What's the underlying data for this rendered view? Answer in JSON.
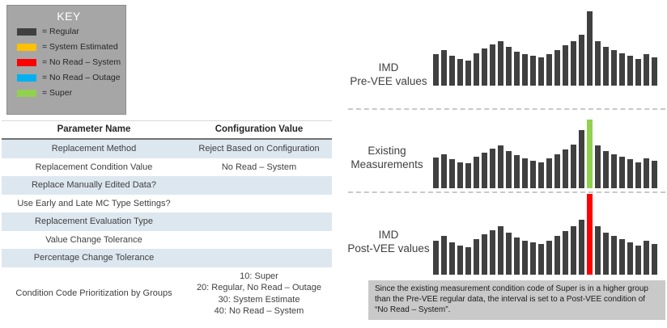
{
  "colors": {
    "regular": "#404040",
    "system_estimated": "#FFC000",
    "no_read_system": "#FF0000",
    "no_read_outage": "#00B0F0",
    "super": "#92D050",
    "table_stripe": "#dde7f0",
    "key_background": "#a6a6a6",
    "callout_background": "#c9c9c9"
  },
  "key": {
    "title": "KEY",
    "items": [
      {
        "label": "= Regular",
        "color_key": "regular",
        "icon": "regular-swatch-icon"
      },
      {
        "label": "= System Estimated",
        "color_key": "system_estimated",
        "icon": "system-estimated-swatch-icon"
      },
      {
        "label": "= No Read – System",
        "color_key": "no_read_system",
        "icon": "no-read-system-swatch-icon"
      },
      {
        "label": "= No Read – Outage",
        "color_key": "no_read_outage",
        "icon": "no-read-outage-swatch-icon"
      },
      {
        "label": "= Super",
        "color_key": "super",
        "icon": "super-swatch-icon"
      }
    ]
  },
  "table": {
    "headers": [
      "Parameter Name",
      "Configuration Value"
    ],
    "rows": [
      {
        "param": "Replacement Method",
        "value": "Reject Based on Configuration"
      },
      {
        "param": "Replacement Condition Value",
        "value": "No Read – System"
      },
      {
        "param": "Replace Manually Edited Data?",
        "value": ""
      },
      {
        "param": "Use Early and Late MC Type Settings?",
        "value": ""
      },
      {
        "param": "Replacement Evaluation Type",
        "value": ""
      },
      {
        "param": "Value Change Tolerance",
        "value": ""
      },
      {
        "param": "Percentage Change Tolerance",
        "value": ""
      },
      {
        "param": "Condition Code Prioritization by Groups",
        "value": "10: Super\n20: Regular, No Read – Outage\n30: System Estimate\n40: No Read – System"
      }
    ]
  },
  "chart_data": [
    {
      "type": "bar",
      "title": "IMD Pre-VEE values",
      "label_lines": [
        "IMD",
        "Pre-VEE values"
      ],
      "values": [
        42,
        48,
        40,
        36,
        34,
        44,
        50,
        55,
        60,
        52,
        46,
        42,
        40,
        38,
        42,
        48,
        54,
        60,
        68,
        100,
        60,
        52,
        48,
        44,
        40,
        36,
        42,
        38
      ],
      "highlight": {
        "index": 19,
        "condition": "regular"
      },
      "ylim": [
        0,
        100
      ],
      "xlabel": "",
      "ylabel": "",
      "notes": "Unlabeled illustrative interval bars; all bars Regular (dark gray); tallest spike at index 19."
    },
    {
      "type": "bar",
      "title": "Existing Measurements",
      "label_lines": [
        "Existing",
        "Measurements"
      ],
      "values": [
        45,
        50,
        42,
        38,
        36,
        46,
        52,
        58,
        62,
        54,
        48,
        44,
        40,
        38,
        44,
        50,
        56,
        64,
        85,
        100,
        62,
        54,
        50,
        46,
        42,
        38,
        44,
        40
      ],
      "highlight": {
        "index": 19,
        "condition": "super"
      },
      "ylim": [
        0,
        100
      ],
      "xlabel": "",
      "ylabel": "",
      "notes": "Unlabeled illustrative interval bars; spike at index 19 has Super condition (green)."
    },
    {
      "type": "bar",
      "title": "IMD Post-VEE values",
      "label_lines": [
        "IMD",
        "Post-VEE values"
      ],
      "values": [
        42,
        48,
        40,
        36,
        34,
        44,
        50,
        55,
        60,
        52,
        46,
        42,
        40,
        38,
        42,
        48,
        54,
        60,
        68,
        100,
        60,
        52,
        48,
        44,
        40,
        36,
        42,
        38
      ],
      "highlight": {
        "index": 19,
        "condition": "no_read_system"
      },
      "ylim": [
        0,
        100
      ],
      "xlabel": "",
      "ylabel": "",
      "notes": "Unlabeled illustrative interval bars; spike at index 19 set to No Read – System condition (red)."
    }
  ],
  "callout": {
    "text": "Since the existing measurement condition code of Super is in a higher group than the Pre-VEE regular data, the interval is set to a Post-VEE condition of “No Read – System”."
  }
}
